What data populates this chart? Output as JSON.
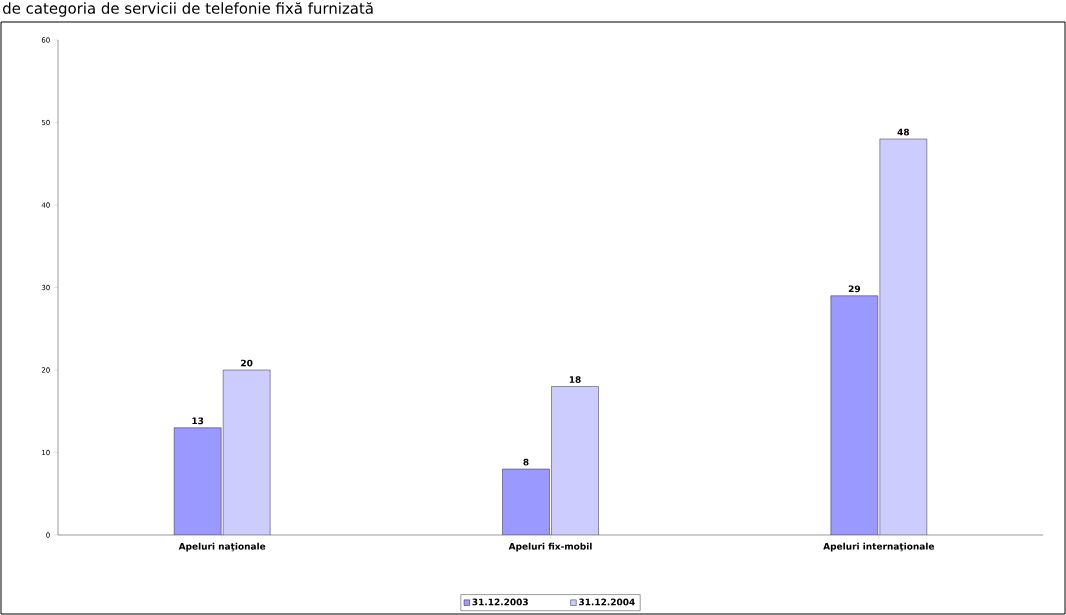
{
  "chart_data": {
    "type": "bar",
    "title": "de categoria de servicii de telefonie fixă furnizată",
    "categories": [
      "Apeluri naţionale",
      "Apeluri fix-mobil",
      "Apeluri internaţionale"
    ],
    "series": [
      {
        "name": "31.12.2003",
        "color": "#9999ff",
        "values": [
          13,
          8,
          29
        ]
      },
      {
        "name": "31.12.2004",
        "color": "#ccccff",
        "values": [
          20,
          18,
          48
        ]
      }
    ],
    "ylim": [
      0,
      60
    ],
    "yticks": [
      0,
      10,
      20,
      30,
      40,
      50,
      60
    ],
    "data_labels": true,
    "legend": "bottom"
  }
}
